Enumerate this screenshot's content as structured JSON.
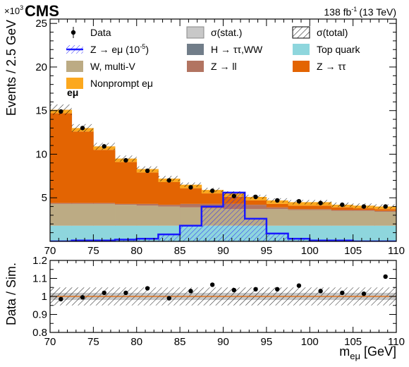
{
  "header": {
    "experiment": "CMS",
    "lumi": "138 fb",
    "lumi_sup": "-1",
    "energy": "(13 TeV)",
    "channel": "eμ",
    "exponent_base": "×10",
    "exponent_power": "3"
  },
  "legend": [
    {
      "key": "data",
      "label": "Data",
      "style": "marker"
    },
    {
      "key": "stat",
      "label": "σ(stat.)",
      "style": "box",
      "color": "#c8c8c8"
    },
    {
      "key": "total",
      "label": "σ(total)",
      "style": "hatch"
    },
    {
      "key": "signal",
      "label": "Z → eμ (10",
      "label_sup": "-5",
      "label_end": ")",
      "style": "signal-hatch",
      "color": "#1a1aff"
    },
    {
      "key": "htt",
      "label": "H → ττ,WW",
      "style": "box",
      "color": "#717d89"
    },
    {
      "key": "top",
      "label": "Top quark",
      "style": "box",
      "color": "#8ed6dd"
    },
    {
      "key": "w",
      "label": "W, multi-V",
      "style": "box",
      "color": "#bcab84"
    },
    {
      "key": "zll",
      "label": "Z → ll",
      "style": "box",
      "color": "#b27461"
    },
    {
      "key": "ztt",
      "label": "Z → ττ",
      "style": "box",
      "color": "#e36402"
    },
    {
      "key": "nonprompt",
      "label": "Nonprompt eμ",
      "style": "box",
      "color": "#fca81e"
    }
  ],
  "chart_data": [
    {
      "type": "bar",
      "panel": "main",
      "stacked": true,
      "ylabel": "Events / 2.5 GeV",
      "xlim": [
        70,
        110
      ],
      "ylim": [
        0,
        25.5
      ],
      "y_unit_note": "×10^3",
      "xticks": [
        70,
        75,
        80,
        85,
        90,
        95,
        100,
        105,
        110
      ],
      "yticks": [
        5,
        10,
        15,
        20,
        25
      ],
      "bin_edges": [
        70,
        72.5,
        75,
        77.5,
        80,
        82.5,
        85,
        87.5,
        90,
        92.5,
        95,
        97.5,
        100,
        102.5,
        105,
        107.5,
        110
      ],
      "series": [
        {
          "name": "Top quark",
          "color": "#8ed6dd",
          "values": [
            1.8,
            1.8,
            1.8,
            1.8,
            1.8,
            1.8,
            1.8,
            1.8,
            1.8,
            1.8,
            1.8,
            1.8,
            1.8,
            1.8,
            1.8,
            1.8
          ]
        },
        {
          "name": "W, multi-V",
          "color": "#bcab84",
          "values": [
            2.5,
            2.5,
            2.5,
            2.4,
            2.3,
            2.2,
            2.1,
            2.0,
            1.9,
            1.9,
            1.9,
            1.8,
            1.8,
            1.7,
            1.7,
            1.6
          ]
        },
        {
          "name": "Z → ll",
          "color": "#b27461",
          "values": [
            0.1,
            0.1,
            0.1,
            0.1,
            0.2,
            0.2,
            0.4,
            0.5,
            0.6,
            0.5,
            0.2,
            0.1,
            0.1,
            0.1,
            0.1,
            0.1
          ]
        },
        {
          "name": "Z → ττ",
          "color": "#e36402",
          "values": [
            10.3,
            8.2,
            6.1,
            4.8,
            3.6,
            2.6,
            1.8,
            1.2,
            0.8,
            0.5,
            0.4,
            0.4,
            0.4,
            0.3,
            0.2,
            0.2
          ]
        },
        {
          "name": "Nonprompt eμ",
          "color": "#fca81e",
          "values": [
            0.4,
            0.4,
            0.4,
            0.4,
            0.4,
            0.4,
            0.4,
            0.4,
            0.4,
            0.4,
            0.4,
            0.4,
            0.4,
            0.3,
            0.3,
            0.3
          ]
        }
      ],
      "total_uncertainty": [
        0.6,
        0.45,
        0.4,
        0.35,
        0.3,
        0.3,
        0.25,
        0.25,
        0.25,
        0.25,
        0.25,
        0.25,
        0.25,
        0.25,
        0.25,
        0.25
      ],
      "signal": {
        "name": "Z → eμ (10^-5)",
        "color": "#1a1aff",
        "values": [
          0,
          0.1,
          0.1,
          0.2,
          0.3,
          0.8,
          1.8,
          4.0,
          5.6,
          2.6,
          0.9,
          0.3,
          0.1,
          0.1,
          0,
          0
        ]
      },
      "data": {
        "name": "Data",
        "x": [
          71.25,
          73.75,
          76.25,
          78.75,
          81.25,
          83.75,
          86.25,
          88.75,
          91.25,
          93.75,
          96.25,
          98.75,
          101.25,
          103.75,
          106.25,
          108.75
        ],
        "y": [
          14.9,
          13.0,
          10.9,
          9.3,
          8.1,
          7.0,
          6.2,
          5.8,
          5.2,
          5.1,
          4.7,
          4.6,
          4.4,
          4.2,
          4.0,
          4.0
        ]
      }
    },
    {
      "type": "scatter",
      "panel": "ratio",
      "xlabel": "m",
      "xlabel_sub": "eμ",
      "xlabel_unit": "[GeV]",
      "ylabel": "Data / Sim.",
      "xlim": [
        70,
        110
      ],
      "ylim": [
        0.8,
        1.2
      ],
      "xticks": [
        70,
        75,
        80,
        85,
        90,
        95,
        100,
        105,
        110
      ],
      "yticks": [
        0.8,
        0.9,
        1,
        1.1,
        1.2
      ],
      "stat_band": 0.02,
      "total_band": 0.05,
      "x": [
        71.25,
        73.75,
        76.25,
        78.75,
        81.25,
        83.75,
        86.25,
        88.75,
        91.25,
        93.75,
        96.25,
        98.75,
        101.25,
        103.75,
        106.25,
        108.75
      ],
      "y": [
        0.985,
        0.995,
        1.02,
        1.02,
        1.045,
        0.99,
        1.03,
        1.065,
        1.035,
        1.04,
        1.04,
        1.06,
        1.03,
        1.02,
        1.015,
        1.11
      ],
      "yerr": [
        0.006,
        0.006,
        0.007,
        0.007,
        0.008,
        0.008,
        0.009,
        0.009,
        0.009,
        0.009,
        0.01,
        0.01,
        0.01,
        0.01,
        0.011,
        0.011
      ]
    }
  ]
}
